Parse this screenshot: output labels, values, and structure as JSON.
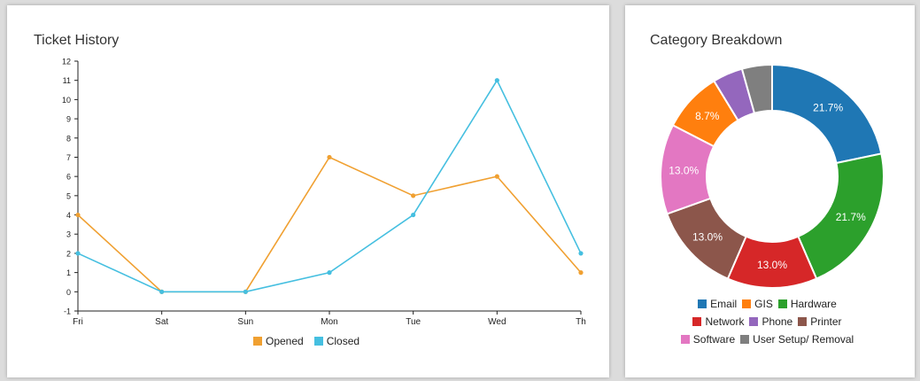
{
  "colors": {
    "opened": "#f0a031",
    "closed": "#45bfe0",
    "axis": "#222222",
    "email": "#1f77b4",
    "gis": "#ff7f0e",
    "hardware": "#2ca02c",
    "network": "#d62728",
    "phone": "#9467bd",
    "printer": "#8c564b",
    "software": "#e377c2",
    "user_setup": "#7f7f7f"
  },
  "chart_data": [
    {
      "type": "line",
      "title": "Ticket History",
      "x": [
        "Fri",
        "Sat",
        "Sun",
        "Mon",
        "Tue",
        "Wed",
        "Thu"
      ],
      "x_tick_labels": [
        "Fri",
        "Sat",
        "Sun",
        "Mon",
        "Tue",
        "Wed",
        "Th"
      ],
      "series": [
        {
          "name": "Opened",
          "values": [
            4,
            0,
            0,
            7,
            5,
            6,
            1
          ]
        },
        {
          "name": "Closed",
          "values": [
            2,
            0,
            0,
            1,
            4,
            11,
            2
          ]
        }
      ],
      "ylim": [
        -1,
        12
      ],
      "y_ticks": [
        "-1",
        "0",
        "1",
        "2",
        "3",
        "4",
        "5",
        "6",
        "7",
        "8",
        "9",
        "10",
        "11",
        "12"
      ],
      "legend": "bottom",
      "grid": false
    },
    {
      "type": "pie",
      "title": "Category Breakdown",
      "donut": true,
      "slices": [
        {
          "name": "Email",
          "value": 21.7,
          "label": "21.7%"
        },
        {
          "name": "Hardware",
          "value": 21.7,
          "label": "21.7%"
        },
        {
          "name": "Network",
          "value": 13.0,
          "label": "13.0%"
        },
        {
          "name": "Printer",
          "value": 13.0,
          "label": "13.0%"
        },
        {
          "name": "Software",
          "value": 13.0,
          "label": "13.0%"
        },
        {
          "name": "GIS",
          "value": 8.7,
          "label": "8.7%"
        },
        {
          "name": "Phone",
          "value": 4.35,
          "label": ""
        },
        {
          "name": "User Setup/ Removal",
          "value": 4.35,
          "label": ""
        }
      ],
      "legend_rows": [
        [
          "Email",
          "GIS",
          "Hardware"
        ],
        [
          "Network",
          "Phone",
          "Printer"
        ],
        [
          "Software",
          "User Setup/ Removal"
        ]
      ],
      "legend": "bottom"
    }
  ]
}
